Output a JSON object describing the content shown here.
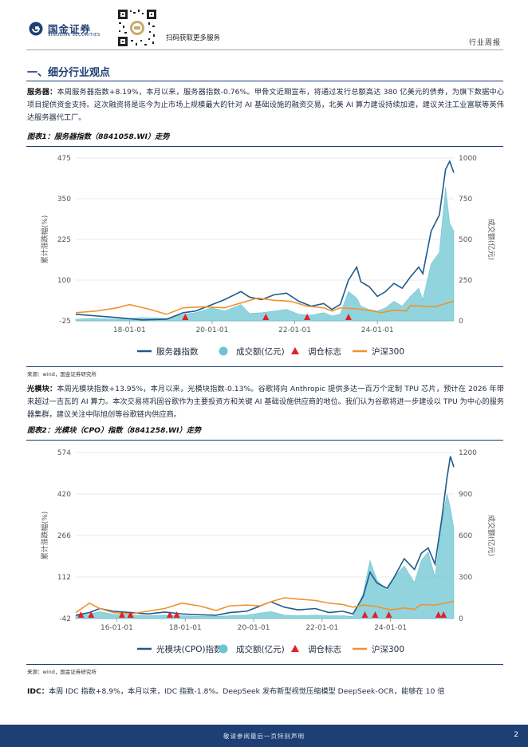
{
  "header": {
    "brand_cn": "国金证券",
    "brand_en": "SINOLINK SECURITIES",
    "qr_caption": "扫码获取更多服务",
    "doc_type": "行业周报"
  },
  "section_title": "一、细分行业观点",
  "paragraphs": {
    "p1_label": "服务器：",
    "p1_text": "本周服务器指数+8.19%，本月以来，服务器指数-0.76%。甲骨文近期宣布，将通过发行总额高达 380 亿美元的债券，为旗下数据中心项目提供资金支持。这次融资将是迄今为止市场上规模最大的针对 AI 基础设施的融资交易，北美 AI 算力建设持续加速，建议关注工业富联等英伟达服务器代工厂。",
    "p2_label": "光模块：",
    "p2_text": "本周光模块指数+13.95%，本月以来，光模块指数-0.13%。谷歌将向 Anthropic 提供多达一百万个定制 TPU 芯片，预计在 2026 年带来超过一吉瓦的 AI 算力。本次交易将巩固谷歌作为主要投资方和关键 AI 基础设施供应商的地位。我们认为谷歌将进一步建设以 TPU 为中心的服务器集群，建议关注中际旭创等谷歌链内供应商。",
    "p3_label": "IDC：",
    "p3_text": "本周 IDC 指数+8.9%，本月以来，IDC 指数-1.8%。DeepSeek 发布新型视觉压缩模型 DeepSeek-OCR，能够在 10 倍"
  },
  "figures": [
    {
      "title": "图表1：服务器指数（8841058.WI）走势",
      "source": "来源：wind，国金证券研究所"
    },
    {
      "title": "图表2：光模块（CPO）指数（8841258.WI）走势",
      "source": "来源：wind，国金证券研究所"
    }
  ],
  "footer": {
    "disclaimer": "敬请参阅最后一页特别声明",
    "page": "2"
  },
  "colors": {
    "index": "#1f5a8c",
    "volume": "#6cc5d3",
    "marker": "#e0202a",
    "hs300": "#f0922b",
    "brand": "#1d3f73"
  },
  "chart_data": [
    {
      "type": "line",
      "ylabel": "累计涨跌幅(%)",
      "y2label": "成交额(亿元)",
      "ylim": [
        -25,
        475
      ],
      "y2lim": [
        0,
        1000
      ],
      "yticks": [
        "475",
        "350",
        "225",
        "100",
        "-25"
      ],
      "y2ticks": [
        "1000",
        "750",
        "500",
        "250",
        "0"
      ],
      "xticks": [
        {
          "x": 2018.0,
          "label": "18-01-01"
        },
        {
          "x": 2020.0,
          "label": "20-01-01"
        },
        {
          "x": 2022.0,
          "label": "22-01-01"
        },
        {
          "x": 2024.0,
          "label": "24-01-01"
        }
      ],
      "xlim": [
        2016.7,
        2025.85
      ],
      "legend": [
        "服务器指数",
        "成交额(亿元)",
        "调仓标志",
        "沪深300"
      ],
      "series": [
        {
          "name": "服务器指数",
          "axis": "left",
          "points": [
            [
              2016.7,
              -5
            ],
            [
              2017.2,
              -10
            ],
            [
              2017.7,
              -15
            ],
            [
              2018.3,
              -22
            ],
            [
              2018.9,
              -20
            ],
            [
              2019.3,
              0
            ],
            [
              2019.6,
              5
            ],
            [
              2020.0,
              25
            ],
            [
              2020.3,
              40
            ],
            [
              2020.7,
              65
            ],
            [
              2020.9,
              48
            ],
            [
              2021.2,
              40
            ],
            [
              2021.5,
              55
            ],
            [
              2021.8,
              60
            ],
            [
              2022.1,
              35
            ],
            [
              2022.4,
              20
            ],
            [
              2022.7,
              28
            ],
            [
              2022.9,
              10
            ],
            [
              2023.1,
              25
            ],
            [
              2023.3,
              100
            ],
            [
              2023.5,
              140
            ],
            [
              2023.6,
              95
            ],
            [
              2023.8,
              80
            ],
            [
              2024.0,
              50
            ],
            [
              2024.2,
              65
            ],
            [
              2024.4,
              90
            ],
            [
              2024.6,
              75
            ],
            [
              2024.8,
              110
            ],
            [
              2025.0,
              140
            ],
            [
              2025.1,
              120
            ],
            [
              2025.3,
              250
            ],
            [
              2025.5,
              300
            ],
            [
              2025.65,
              440
            ],
            [
              2025.75,
              465
            ],
            [
              2025.85,
              430
            ]
          ]
        },
        {
          "name": "成交额(亿元)",
          "axis": "right",
          "points": [
            [
              2016.7,
              10
            ],
            [
              2017.2,
              15
            ],
            [
              2017.7,
              10
            ],
            [
              2018.3,
              20
            ],
            [
              2018.9,
              15
            ],
            [
              2019.3,
              40
            ],
            [
              2019.6,
              50
            ],
            [
              2020.0,
              80
            ],
            [
              2020.3,
              60
            ],
            [
              2020.7,
              100
            ],
            [
              2020.9,
              45
            ],
            [
              2021.2,
              50
            ],
            [
              2021.5,
              60
            ],
            [
              2021.8,
              70
            ],
            [
              2022.1,
              40
            ],
            [
              2022.4,
              35
            ],
            [
              2022.7,
              50
            ],
            [
              2022.9,
              30
            ],
            [
              2023.1,
              40
            ],
            [
              2023.3,
              180
            ],
            [
              2023.5,
              140
            ],
            [
              2023.6,
              90
            ],
            [
              2023.8,
              70
            ],
            [
              2024.0,
              60
            ],
            [
              2024.2,
              80
            ],
            [
              2024.4,
              120
            ],
            [
              2024.6,
              90
            ],
            [
              2024.8,
              150
            ],
            [
              2025.0,
              200
            ],
            [
              2025.1,
              130
            ],
            [
              2025.3,
              350
            ],
            [
              2025.5,
              420
            ],
            [
              2025.65,
              820
            ],
            [
              2025.75,
              600
            ],
            [
              2025.85,
              550
            ]
          ]
        },
        {
          "name": "沪深300",
          "axis": "left",
          "points": [
            [
              2016.7,
              0
            ],
            [
              2017.2,
              5
            ],
            [
              2017.7,
              15
            ],
            [
              2018.0,
              25
            ],
            [
              2018.5,
              10
            ],
            [
              2018.9,
              -5
            ],
            [
              2019.3,
              15
            ],
            [
              2019.8,
              18
            ],
            [
              2020.3,
              15
            ],
            [
              2020.7,
              30
            ],
            [
              2021.1,
              45
            ],
            [
              2021.5,
              38
            ],
            [
              2021.9,
              35
            ],
            [
              2022.3,
              20
            ],
            [
              2022.7,
              15
            ],
            [
              2022.9,
              5
            ],
            [
              2023.1,
              15
            ],
            [
              2023.5,
              12
            ],
            [
              2023.9,
              5
            ],
            [
              2024.1,
              0
            ],
            [
              2024.4,
              8
            ],
            [
              2024.7,
              5
            ],
            [
              2024.8,
              22
            ],
            [
              2025.1,
              20
            ],
            [
              2025.4,
              18
            ],
            [
              2025.7,
              30
            ],
            [
              2025.85,
              35
            ]
          ]
        }
      ],
      "markers": [
        2019.35,
        2021.3,
        2022.3,
        2023.3
      ]
    },
    {
      "type": "line",
      "ylabel": "累计涨跌幅(%)",
      "y2label": "成交额(亿元)",
      "ylim": [
        -42,
        574
      ],
      "y2lim": [
        0,
        1200
      ],
      "yticks": [
        "574",
        "420",
        "266",
        "112",
        "-42"
      ],
      "y2ticks": [
        "1200",
        "900",
        "600",
        "300",
        "0"
      ],
      "xticks": [
        {
          "x": 2016.0,
          "label": "16-01-01"
        },
        {
          "x": 2018.0,
          "label": "18-01-01"
        },
        {
          "x": 2020.0,
          "label": "20-01-01"
        },
        {
          "x": 2022.0,
          "label": "22-01-01"
        },
        {
          "x": 2024.0,
          "label": "24-01-01"
        }
      ],
      "xlim": [
        2014.8,
        2025.85
      ],
      "legend": [
        "光模块(CPO)指数",
        "成交额(亿元)",
        "调仓标志",
        "沪深300"
      ],
      "series": [
        {
          "name": "光模块(CPO)指数",
          "axis": "left",
          "points": [
            [
              2014.8,
              -30
            ],
            [
              2015.2,
              -20
            ],
            [
              2015.5,
              -5
            ],
            [
              2015.9,
              -15
            ],
            [
              2016.4,
              -20
            ],
            [
              2016.9,
              -25
            ],
            [
              2017.4,
              -18
            ],
            [
              2017.9,
              -25
            ],
            [
              2018.4,
              -28
            ],
            [
              2018.9,
              -30
            ],
            [
              2019.3,
              -20
            ],
            [
              2019.8,
              -15
            ],
            [
              2020.2,
              5
            ],
            [
              2020.5,
              20
            ],
            [
              2020.9,
              0
            ],
            [
              2021.3,
              -10
            ],
            [
              2021.8,
              -5
            ],
            [
              2022.2,
              -20
            ],
            [
              2022.6,
              -15
            ],
            [
              2022.9,
              -25
            ],
            [
              2023.2,
              40
            ],
            [
              2023.4,
              130
            ],
            [
              2023.6,
              90
            ],
            [
              2023.9,
              70
            ],
            [
              2024.1,
              110
            ],
            [
              2024.4,
              180
            ],
            [
              2024.7,
              140
            ],
            [
              2024.9,
              200
            ],
            [
              2025.1,
              220
            ],
            [
              2025.3,
              160
            ],
            [
              2025.5,
              330
            ],
            [
              2025.65,
              480
            ],
            [
              2025.75,
              560
            ],
            [
              2025.85,
              520
            ]
          ]
        },
        {
          "name": "成交额(亿元)",
          "axis": "right",
          "points": [
            [
              2014.8,
              20
            ],
            [
              2015.2,
              30
            ],
            [
              2015.5,
              50
            ],
            [
              2015.9,
              30
            ],
            [
              2016.4,
              25
            ],
            [
              2016.9,
              20
            ],
            [
              2017.4,
              25
            ],
            [
              2017.9,
              20
            ],
            [
              2018.4,
              15
            ],
            [
              2018.9,
              15
            ],
            [
              2019.3,
              20
            ],
            [
              2019.8,
              25
            ],
            [
              2020.2,
              40
            ],
            [
              2020.5,
              50
            ],
            [
              2020.9,
              25
            ],
            [
              2021.3,
              20
            ],
            [
              2021.8,
              25
            ],
            [
              2022.2,
              20
            ],
            [
              2022.6,
              20
            ],
            [
              2022.9,
              15
            ],
            [
              2023.2,
              180
            ],
            [
              2023.4,
              420
            ],
            [
              2023.6,
              280
            ],
            [
              2023.9,
              200
            ],
            [
              2024.1,
              300
            ],
            [
              2024.4,
              380
            ],
            [
              2024.7,
              260
            ],
            [
              2024.9,
              420
            ],
            [
              2025.1,
              480
            ],
            [
              2025.3,
              300
            ],
            [
              2025.5,
              700
            ],
            [
              2025.65,
              900
            ],
            [
              2025.75,
              800
            ],
            [
              2025.85,
              650
            ]
          ]
        },
        {
          "name": "沪深300",
          "axis": "left",
          "points": [
            [
              2014.8,
              -20
            ],
            [
              2015.2,
              15
            ],
            [
              2015.5,
              -5
            ],
            [
              2015.9,
              -20
            ],
            [
              2016.4,
              -25
            ],
            [
              2016.9,
              -15
            ],
            [
              2017.4,
              -5
            ],
            [
              2017.9,
              15
            ],
            [
              2018.4,
              5
            ],
            [
              2018.9,
              -12
            ],
            [
              2019.3,
              5
            ],
            [
              2019.8,
              8
            ],
            [
              2020.2,
              5
            ],
            [
              2020.5,
              20
            ],
            [
              2020.9,
              35
            ],
            [
              2021.3,
              30
            ],
            [
              2021.8,
              25
            ],
            [
              2022.2,
              15
            ],
            [
              2022.6,
              10
            ],
            [
              2022.9,
              0
            ],
            [
              2023.2,
              8
            ],
            [
              2023.6,
              2
            ],
            [
              2024.0,
              -10
            ],
            [
              2024.4,
              -3
            ],
            [
              2024.7,
              -8
            ],
            [
              2024.9,
              10
            ],
            [
              2025.3,
              8
            ],
            [
              2025.6,
              15
            ],
            [
              2025.85,
              22
            ]
          ]
        }
      ],
      "markers": [
        2014.95,
        2015.25,
        2016.15,
        2016.4,
        2017.55,
        2017.75,
        2023.25,
        2023.55,
        2023.95,
        2025.4,
        2025.55
      ]
    }
  ]
}
